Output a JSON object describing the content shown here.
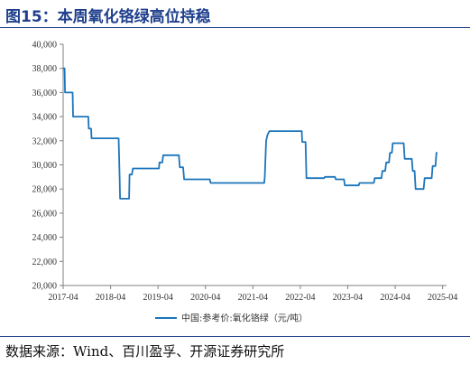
{
  "figure": {
    "title": "图15：本周氧化铬绿高位持稳",
    "source": "数据来源：Wind、百川盈孚、开源证券研究所"
  },
  "colors": {
    "title": "#1f3f8c",
    "line": "#1b75bc",
    "axis": "#7f7f7f"
  },
  "chart_data": {
    "type": "line",
    "title": "",
    "xlabel": "",
    "ylabel": "",
    "ylim": [
      20000,
      40000
    ],
    "y_ticks": [
      "20,000",
      "22,000",
      "24,000",
      "26,000",
      "28,000",
      "30,000",
      "32,000",
      "34,000",
      "36,000",
      "38,000",
      "40,000"
    ],
    "y_tick_values": [
      20000,
      22000,
      24000,
      26000,
      28000,
      30000,
      32000,
      34000,
      36000,
      38000,
      40000
    ],
    "x_range": [
      2017.25,
      2025.333
    ],
    "x_ticks": [
      "2017-04",
      "2018-04",
      "2019-04",
      "2020-04",
      "2021-04",
      "2022-04",
      "2023-04",
      "2024-04",
      "2025-04"
    ],
    "x_tick_values": [
      2017.25,
      2018.25,
      2019.25,
      2020.25,
      2021.25,
      2022.25,
      2023.25,
      2024.25,
      2025.25
    ],
    "grid": false,
    "legend_position": "bottom",
    "series": [
      {
        "name": "中国:参考价:氧化铬绿（元/吨）",
        "points": [
          [
            2017.25,
            38000
          ],
          [
            2017.28,
            38000
          ],
          [
            2017.29,
            36000
          ],
          [
            2017.45,
            36000
          ],
          [
            2017.46,
            34000
          ],
          [
            2017.78,
            34000
          ],
          [
            2017.79,
            33000
          ],
          [
            2017.84,
            33000
          ],
          [
            2017.85,
            32200
          ],
          [
            2018.42,
            32200
          ],
          [
            2018.44,
            29000
          ],
          [
            2018.45,
            27200
          ],
          [
            2018.64,
            27200
          ],
          [
            2018.65,
            29200
          ],
          [
            2018.7,
            29200
          ],
          [
            2018.72,
            29700
          ],
          [
            2019.27,
            29700
          ],
          [
            2019.28,
            30200
          ],
          [
            2019.34,
            30200
          ],
          [
            2019.36,
            30800
          ],
          [
            2019.69,
            30800
          ],
          [
            2019.71,
            29800
          ],
          [
            2019.78,
            29800
          ],
          [
            2019.8,
            28800
          ],
          [
            2020.34,
            28800
          ],
          [
            2020.36,
            28500
          ],
          [
            2021.49,
            28500
          ],
          [
            2021.5,
            29000
          ],
          [
            2021.53,
            32000
          ],
          [
            2021.56,
            32500
          ],
          [
            2021.6,
            32800
          ],
          [
            2022.28,
            32800
          ],
          [
            2022.29,
            31900
          ],
          [
            2022.36,
            31900
          ],
          [
            2022.38,
            28900
          ],
          [
            2022.75,
            28900
          ],
          [
            2022.77,
            29000
          ],
          [
            2022.98,
            29000
          ],
          [
            2023.0,
            28800
          ],
          [
            2023.17,
            28800
          ],
          [
            2023.19,
            28300
          ],
          [
            2023.48,
            28300
          ],
          [
            2023.5,
            28500
          ],
          [
            2023.8,
            28500
          ],
          [
            2023.82,
            28900
          ],
          [
            2023.96,
            28900
          ],
          [
            2023.98,
            29500
          ],
          [
            2024.04,
            29500
          ],
          [
            2024.06,
            30200
          ],
          [
            2024.12,
            30200
          ],
          [
            2024.14,
            31000
          ],
          [
            2024.18,
            31000
          ],
          [
            2024.2,
            31800
          ],
          [
            2024.43,
            31800
          ],
          [
            2024.45,
            30500
          ],
          [
            2024.6,
            30500
          ],
          [
            2024.62,
            29500
          ],
          [
            2024.66,
            29500
          ],
          [
            2024.68,
            28000
          ],
          [
            2024.85,
            28000
          ],
          [
            2024.87,
            28900
          ],
          [
            2025.02,
            28900
          ],
          [
            2025.04,
            29900
          ],
          [
            2025.1,
            29900
          ],
          [
            2025.12,
            31000
          ],
          [
            2025.14,
            31000
          ]
        ]
      }
    ]
  }
}
